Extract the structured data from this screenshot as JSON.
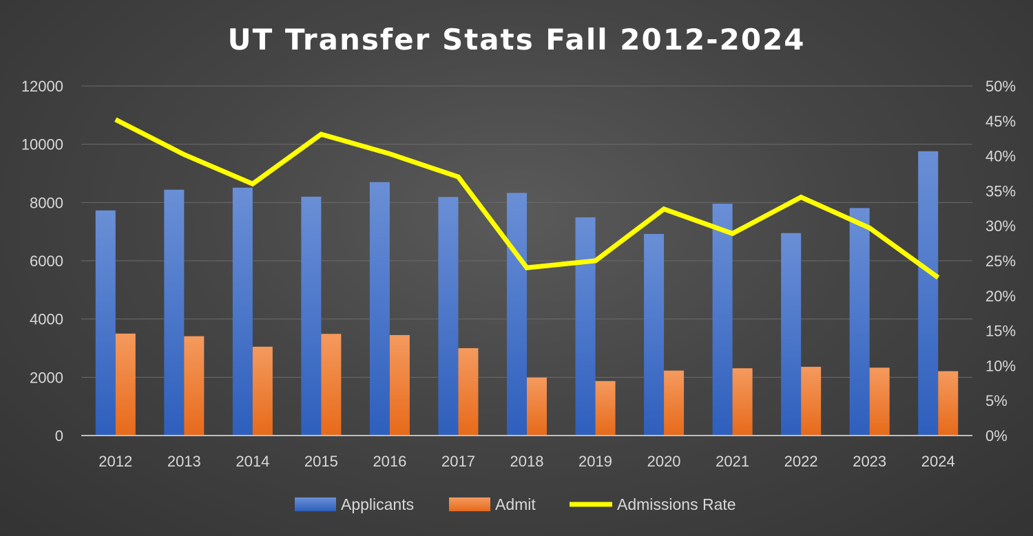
{
  "chart_data": {
    "type": "bar",
    "title": "UT Transfer Stats Fall 2012-2024",
    "categories": [
      "2012",
      "2013",
      "2014",
      "2015",
      "2016",
      "2017",
      "2018",
      "2019",
      "2020",
      "2021",
      "2022",
      "2023",
      "2024"
    ],
    "series": [
      {
        "name": "Applicants",
        "type": "bar",
        "axis": "left",
        "color": "#4472C4",
        "values": [
          7730,
          8440,
          8510,
          8200,
          8700,
          8190,
          8330,
          7490,
          6920,
          7960,
          6950,
          7810,
          9760
        ]
      },
      {
        "name": "Admit",
        "type": "bar",
        "axis": "left",
        "color": "#ED7D31",
        "values": [
          3500,
          3410,
          3050,
          3490,
          3450,
          3000,
          1990,
          1870,
          2230,
          2310,
          2360,
          2330,
          2210
        ]
      },
      {
        "name": "Admissions Rate",
        "type": "line",
        "axis": "right",
        "color": "#FFFF00",
        "values": [
          45.2,
          40.2,
          36.0,
          43.1,
          40.3,
          37.0,
          24.0,
          25.0,
          32.4,
          28.9,
          34.1,
          29.7,
          22.6
        ]
      }
    ],
    "left_axis": {
      "min": 0,
      "max": 12000,
      "ticks": [
        "0",
        "2000",
        "4000",
        "6000",
        "8000",
        "10000",
        "12000"
      ]
    },
    "right_axis": {
      "min": 0,
      "max": 50,
      "ticks": [
        "0%",
        "5%",
        "10%",
        "15%",
        "20%",
        "25%",
        "30%",
        "35%",
        "40%",
        "45%",
        "50%"
      ]
    },
    "grid": true,
    "legend_position": "bottom"
  }
}
